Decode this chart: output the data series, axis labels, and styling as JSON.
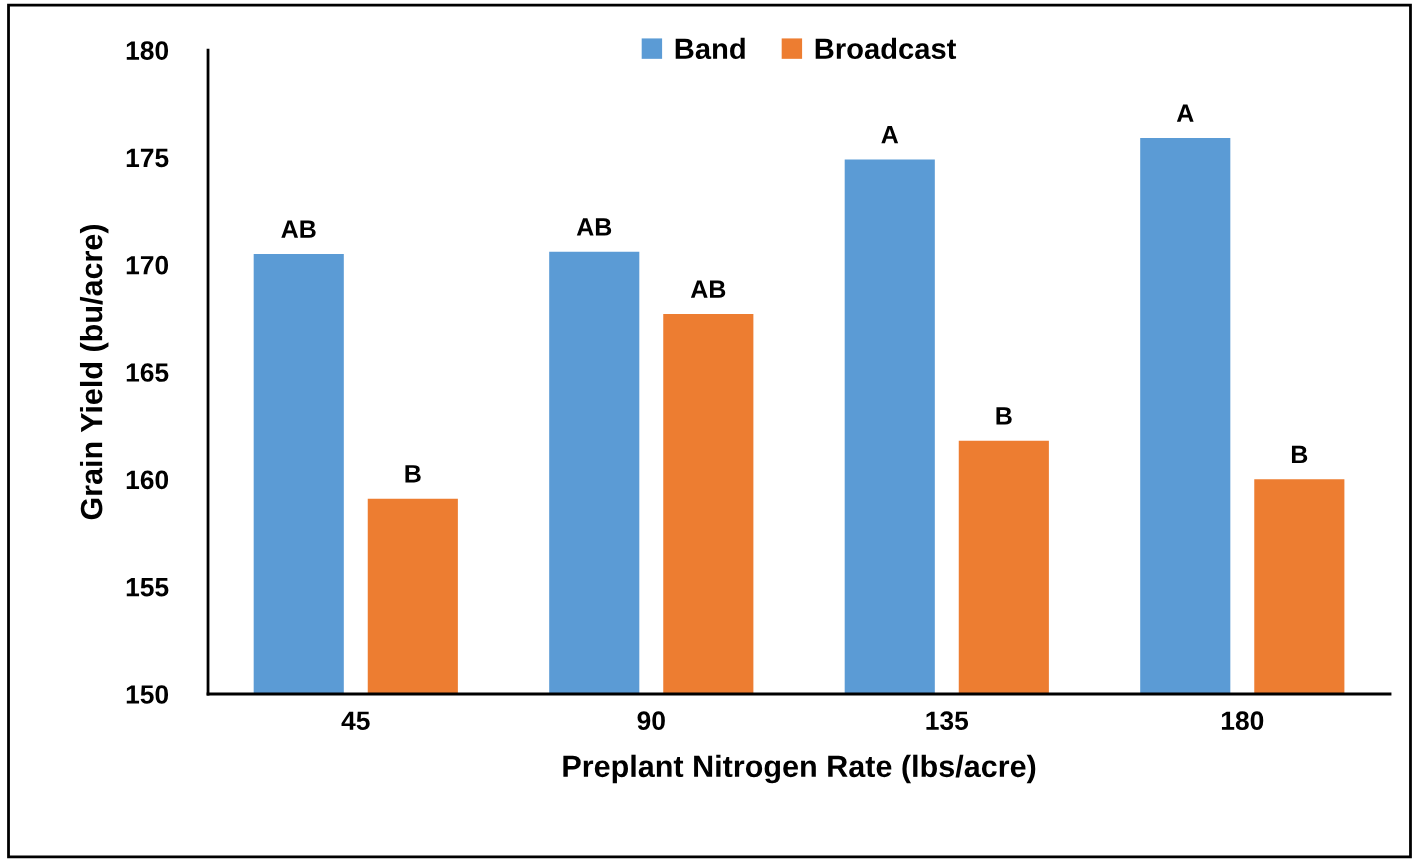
{
  "chart_data": {
    "type": "bar",
    "xlabel": "Preplant Nitrogen Rate (lbs/acre)",
    "ylabel": "Grain Yield (bu/acre)",
    "categories": [
      "45",
      "90",
      "135",
      "180"
    ],
    "series": [
      {
        "name": "Band",
        "color": "#5b9bd5",
        "values": [
          170.5,
          170.6,
          174.9,
          175.9
        ],
        "value_labels": [
          "AB",
          "AB",
          "A",
          "A"
        ]
      },
      {
        "name": "Broadcast",
        "color": "#ed7d31",
        "values": [
          159.1,
          167.7,
          161.8,
          160.0
        ],
        "value_labels": [
          "B",
          "AB",
          "B",
          "B"
        ]
      }
    ],
    "ylim": [
      150,
      180
    ],
    "yticks": [
      150,
      155,
      160,
      165,
      170,
      175,
      180
    ],
    "grid": false,
    "legend": "top"
  }
}
